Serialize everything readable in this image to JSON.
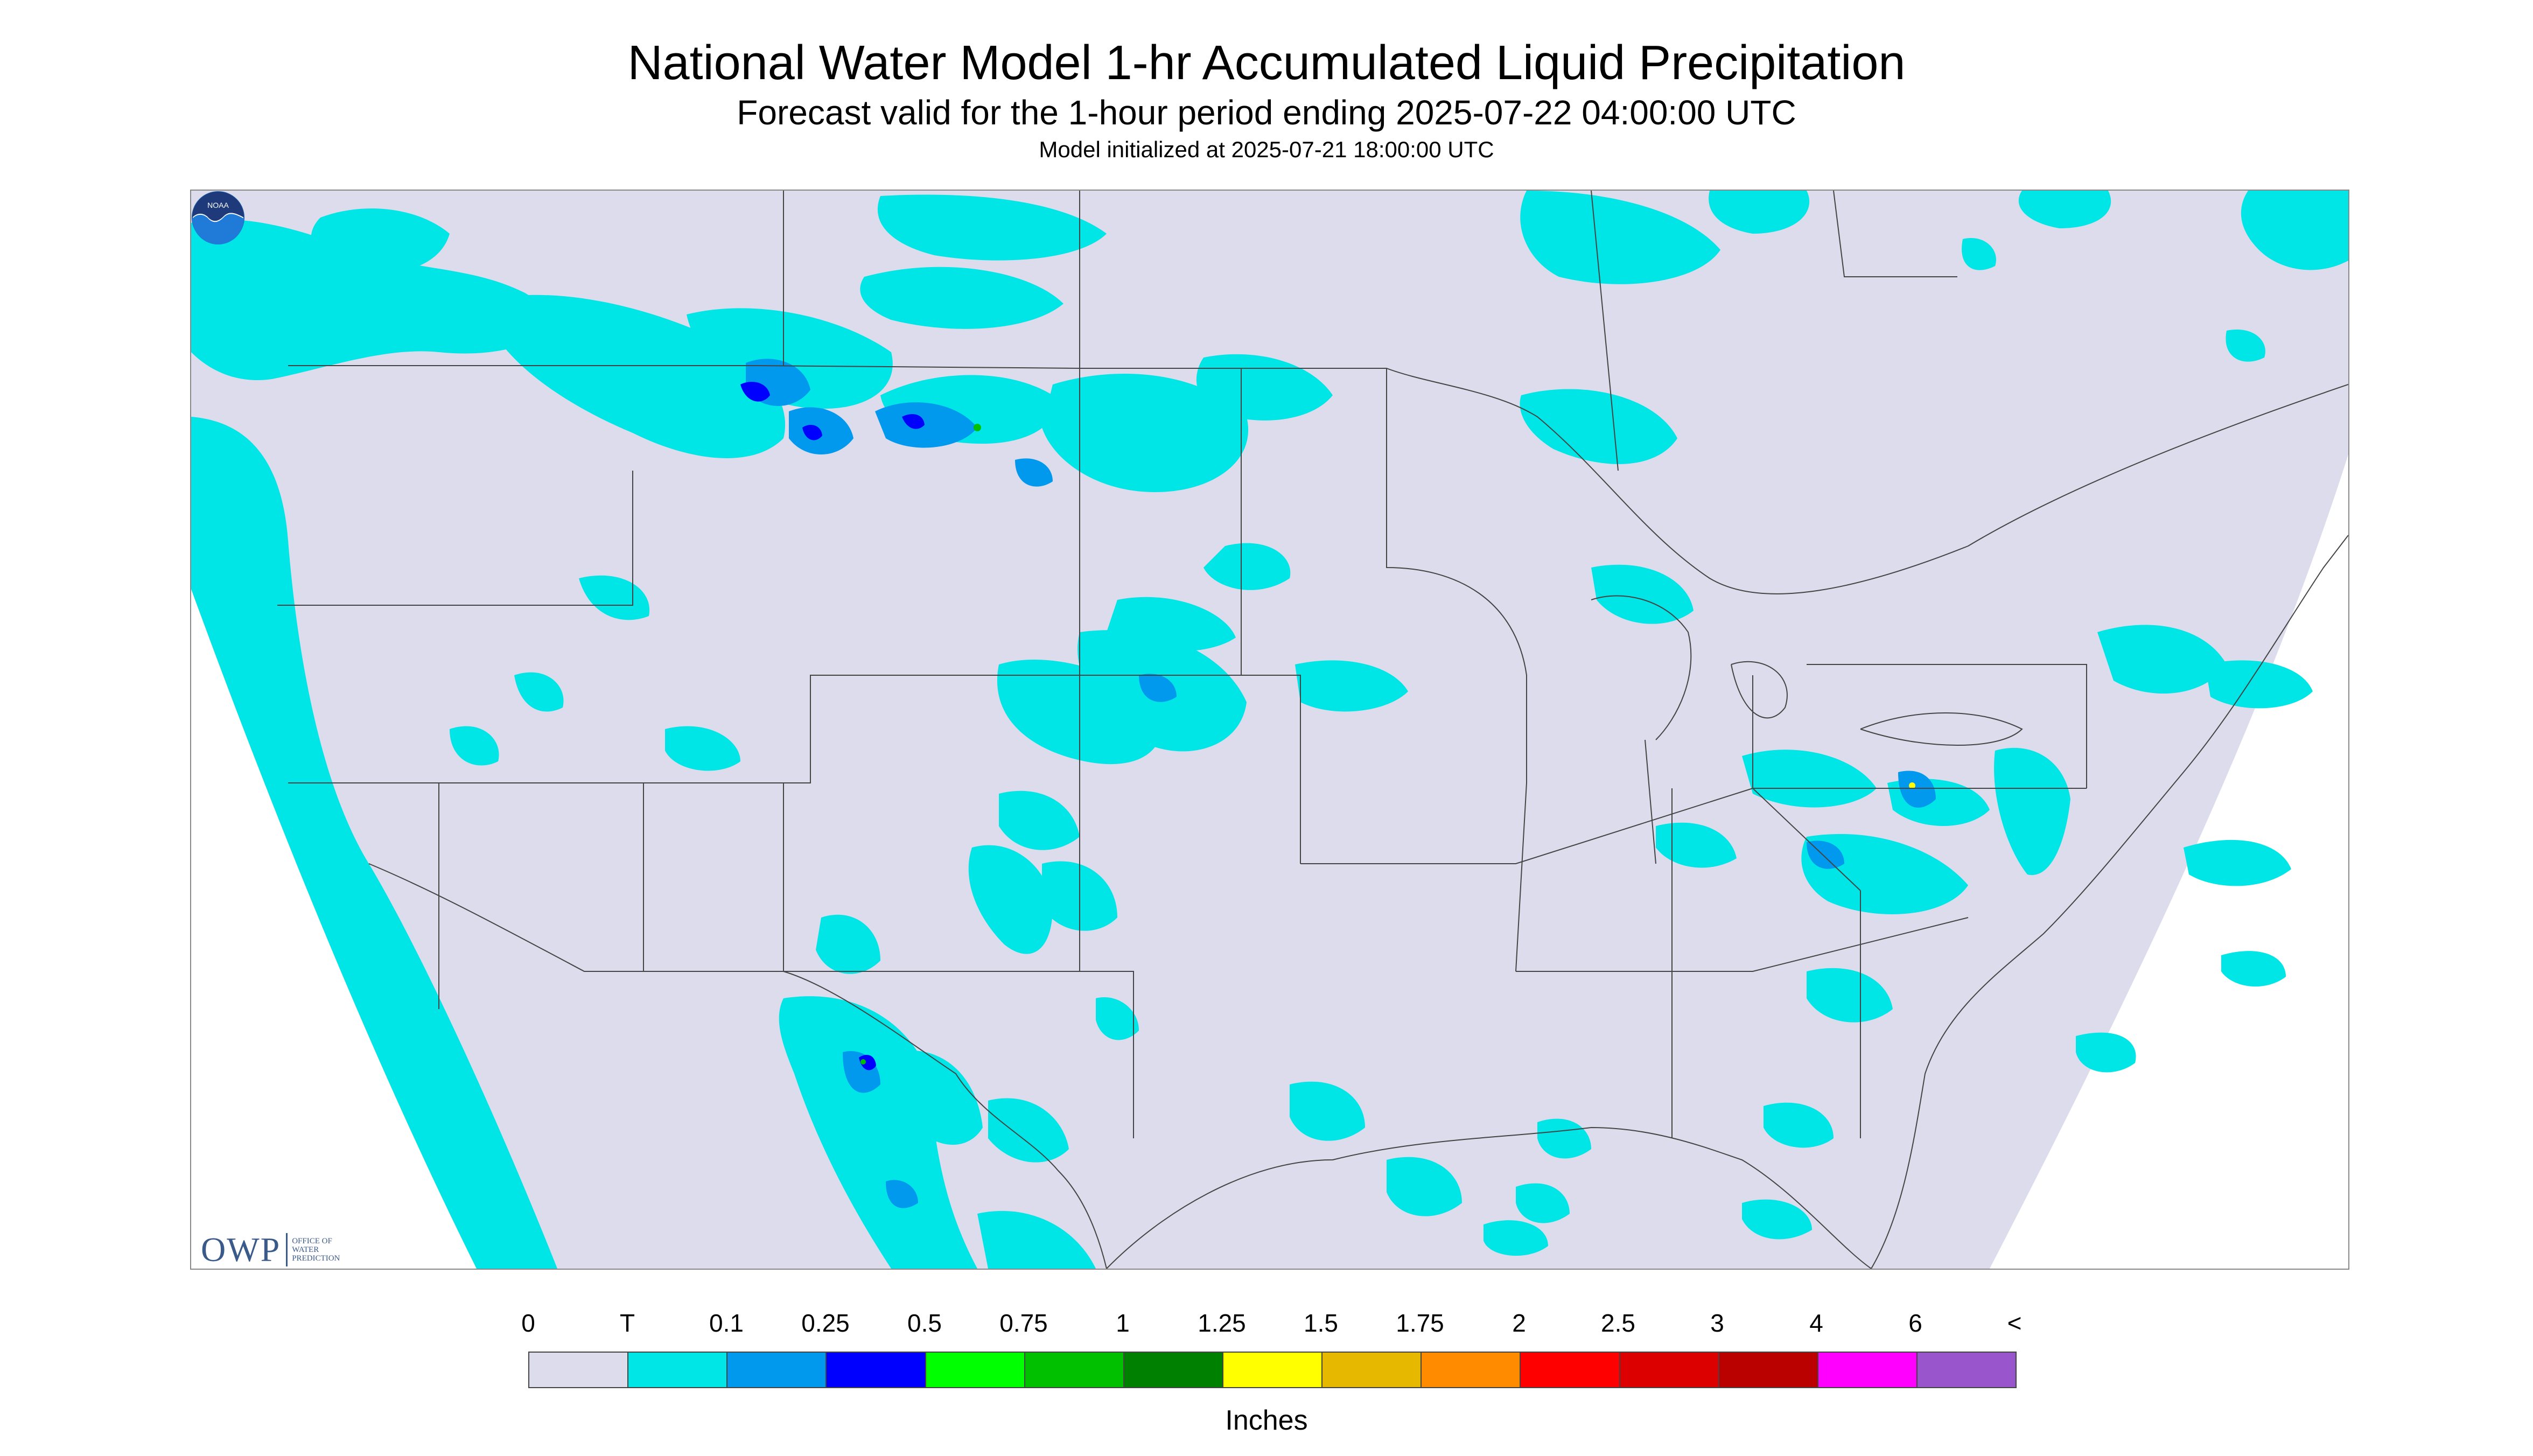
{
  "title": "National Water Model 1-hr Accumulated Liquid Precipitation",
  "subtitle": "Forecast valid for the 1-hour period ending 2025-07-22 04:00:00 UTC",
  "init_line": "Model initialized at 2025-07-21 18:00:00 UTC",
  "logo": {
    "owp_mark": "OWP",
    "owp_text": [
      "OFFICE OF",
      "WATER",
      "PREDICTION"
    ],
    "noaa_label": "NOAA"
  },
  "legend": {
    "units": "Inches",
    "ticks": [
      "0",
      "T",
      "0.1",
      "0.25",
      "0.5",
      "0.75",
      "1",
      "1.25",
      "1.5",
      "1.75",
      "2",
      "2.5",
      "3",
      "4",
      "6",
      "<"
    ],
    "colors": [
      "#dcdcec",
      "#00e5e5",
      "#0099ee",
      "#0000ff",
      "#00ff00",
      "#00c000",
      "#008000",
      "#ffff00",
      "#e6b800",
      "#ff8c00",
      "#ff0000",
      "#dd0000",
      "#bb0000",
      "#ff00ff",
      "#9955cc"
    ]
  },
  "map_colors": {
    "domain_fill": "#dcdcec",
    "outside_fill": "#ffffff",
    "trace": "#00e5e5",
    "light": "#0099ee",
    "moderate": "#0000ff",
    "heavy": "#00c000",
    "boundary": "#444444"
  }
}
